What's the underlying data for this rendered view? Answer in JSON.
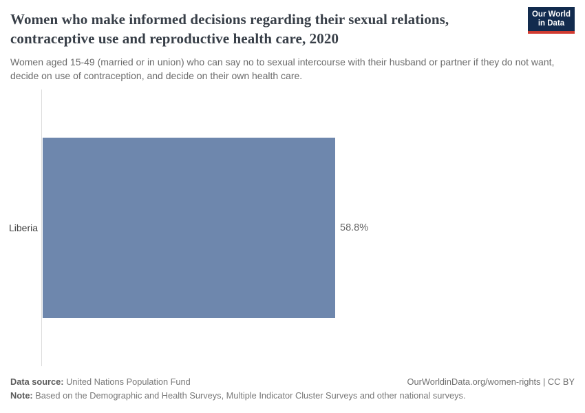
{
  "header": {
    "title": "Women who make informed decisions regarding their sexual relations, contraceptive use and reproductive health care, 2020",
    "subtitle": "Women aged 15-49 (married or in union) who can say no to sexual intercourse with their husband or partner if they do not want, decide on use of contraception, and decide on their own health care.",
    "logo": {
      "line1": "Our World",
      "line2": "in Data"
    }
  },
  "chart_data": {
    "type": "bar",
    "orientation": "horizontal",
    "categories": [
      "Liberia"
    ],
    "values": [
      58.8
    ],
    "value_labels": [
      "58.8%"
    ],
    "title": "Women who make informed decisions regarding their sexual relations, contraceptive use and reproductive health care, 2020",
    "xlabel": "",
    "ylabel": "",
    "xlim": [
      0,
      100
    ],
    "grid": false,
    "legend": false,
    "bar_color": "#6e87ad",
    "axis_line_color": "#dcdcdc"
  },
  "footer": {
    "data_source_label": "Data source:",
    "data_source_text": " United Nations Population Fund",
    "link_text": "OurWorldinData.org/women-rights | CC BY",
    "note_label": "Note:",
    "note_text": " Based on the Demographic and Health Surveys, Multiple Indicator Cluster Surveys and other national surveys."
  },
  "colors": {
    "logo_background": "#122b4e",
    "logo_stripe": "#d13b31",
    "title": "#383f48",
    "subtitle": "#6b6b6b"
  }
}
